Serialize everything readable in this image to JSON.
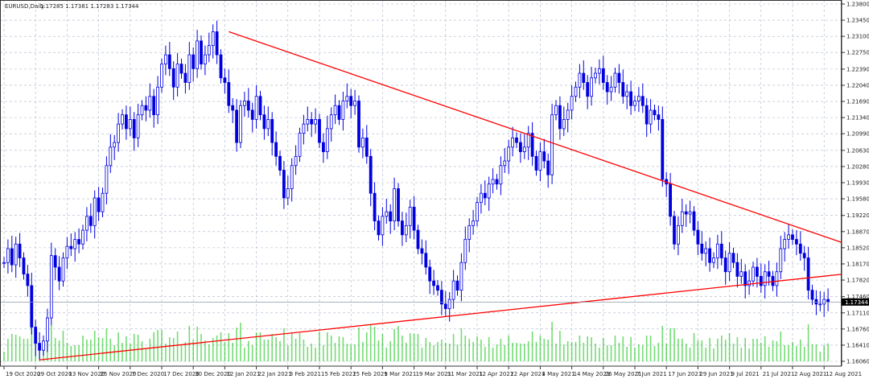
{
  "chart_data": {
    "type": "candlestick",
    "symbol_title": "EURUSD,Daily",
    "ohlc_readout": [
      "1.17285",
      "1.17381",
      "1.17283",
      "1.17344"
    ],
    "current_price": 1.17344,
    "current_price_label": "1.17344",
    "ylim": [
      1.1606,
      1.238
    ],
    "y_ticks": [
      "1.23800",
      "1.23450",
      "1.23100",
      "1.22750",
      "1.22390",
      "1.22040",
      "1.21690",
      "1.21340",
      "1.20990",
      "1.20630",
      "1.20280",
      "1.19930",
      "1.19580",
      "1.19220",
      "1.18870",
      "1.18520",
      "1.18170",
      "1.17820",
      "1.17460",
      "1.17110",
      "1.16760",
      "1.16410",
      "1.16060"
    ],
    "x_ticks": [
      "19 Oct 2020",
      "29 Oct 2020",
      "13 Nov 2020",
      "25 Nov 2020",
      "7 Dec 2020",
      "17 Dec 2020",
      "30 Dec 2020",
      "12 Jan 2021",
      "22 Jan 2021",
      "3 Feb 2021",
      "15 Feb 2021",
      "25 Feb 2021",
      "9 Mar 2021",
      "19 Mar 2021",
      "31 Mar 2021",
      "12 Apr 2021",
      "22 Apr 2021",
      "4 May 2021",
      "14 May 2021",
      "26 May 2021",
      "7 Jun 2021",
      "17 Jun 2021",
      "29 Jun 2021",
      "9 Jul 2021",
      "21 Jul 2021",
      "2 Aug 2021",
      "12 Aug 2021"
    ],
    "grid": true,
    "closes": [
      1.182,
      1.185,
      1.1815,
      1.186,
      1.183,
      1.1795,
      1.177,
      1.168,
      1.1645,
      1.163,
      1.165,
      1.17,
      1.1835,
      1.181,
      1.178,
      1.183,
      1.1855,
      1.185,
      1.187,
      1.186,
      1.189,
      1.192,
      1.19,
      1.196,
      1.193,
      1.197,
      1.203,
      1.207,
      1.208,
      1.212,
      1.214,
      1.211,
      1.213,
      1.209,
      1.214,
      1.216,
      1.215,
      1.218,
      1.214,
      1.22,
      1.225,
      1.227,
      1.224,
      1.22,
      1.225,
      1.223,
      1.221,
      1.227,
      1.224,
      1.23,
      1.225,
      1.227,
      1.229,
      1.232,
      1.227,
      1.222,
      1.221,
      1.216,
      1.215,
      1.208,
      1.216,
      1.217,
      1.215,
      1.213,
      1.218,
      1.214,
      1.211,
      1.213,
      1.208,
      1.205,
      1.202,
      1.196,
      1.198,
      1.203,
      1.205,
      1.21,
      1.212,
      1.213,
      1.212,
      1.213,
      1.208,
      1.206,
      1.211,
      1.214,
      1.216,
      1.213,
      1.217,
      1.218,
      1.216,
      1.217,
      1.207,
      1.209,
      1.205,
      1.197,
      1.191,
      1.188,
      1.192,
      1.193,
      1.191,
      1.198,
      1.191,
      1.188,
      1.19,
      1.194,
      1.189,
      1.185,
      1.184,
      1.181,
      1.178,
      1.177,
      1.176,
      1.173,
      1.172,
      1.174,
      1.178,
      1.176,
      1.182,
      1.187,
      1.19,
      1.191,
      1.195,
      1.197,
      1.196,
      1.199,
      1.2,
      1.199,
      1.203,
      1.204,
      1.207,
      1.209,
      1.208,
      1.206,
      1.207,
      1.21,
      1.205,
      1.202,
      1.206,
      1.204,
      1.201,
      1.214,
      1.216,
      1.211,
      1.213,
      1.215,
      1.218,
      1.22,
      1.223,
      1.221,
      1.218,
      1.222,
      1.223,
      1.224,
      1.221,
      1.219,
      1.22,
      1.223,
      1.221,
      1.218,
      1.219,
      1.216,
      1.217,
      1.218,
      1.216,
      1.212,
      1.215,
      1.214,
      1.213,
      1.2,
      1.199,
      1.192,
      1.186,
      1.19,
      1.193,
      1.1925,
      1.193,
      1.189,
      1.186,
      1.184,
      1.185,
      1.182,
      1.183,
      1.186,
      1.183,
      1.18,
      1.184,
      1.182,
      1.179,
      1.18,
      1.177,
      1.178,
      1.181,
      1.179,
      1.177,
      1.18,
      1.179,
      1.177,
      1.18,
      1.185,
      1.187,
      1.188,
      1.187,
      1.186,
      1.184,
      1.183,
      1.176,
      1.174,
      1.173,
      1.173,
      1.174,
      1.17344
    ],
    "trendlines": [
      {
        "from_date": "6 Jan 2021",
        "from_price": 1.232,
        "to_date": "12 Aug 2021",
        "to_price": 1.1862,
        "color": "#ff0000"
      },
      {
        "from_date": "30 Oct 2020",
        "from_price": 1.1609,
        "to_date": "12 Aug 2021",
        "to_price": 1.1795,
        "color": "#ff0000"
      }
    ],
    "colors": {
      "candle": "#0000e0",
      "volume": "#00c000",
      "trendline": "#ff0000",
      "grid": "#aab4c8"
    }
  }
}
